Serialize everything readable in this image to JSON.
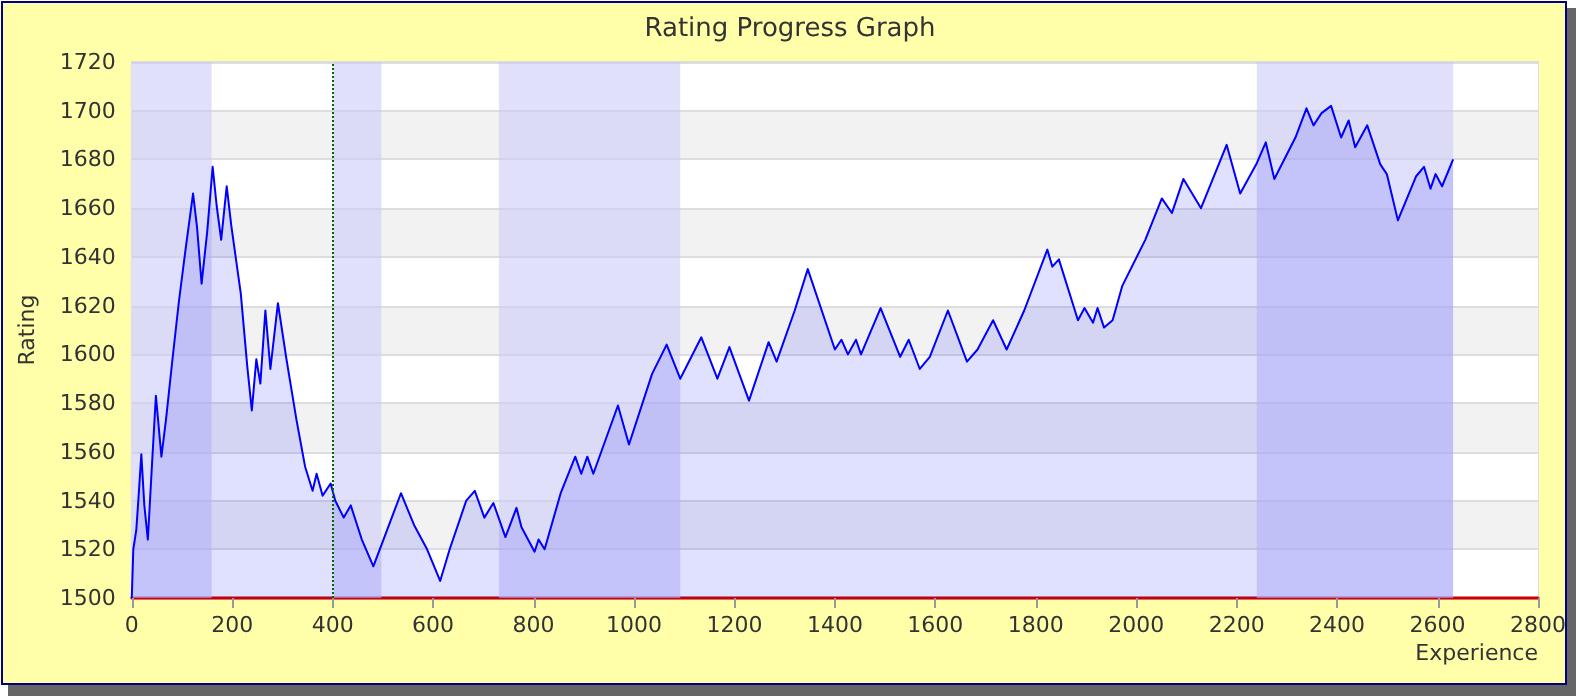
{
  "chart_data": {
    "type": "area",
    "title": "Rating Progress Graph",
    "xlabel": "Experience",
    "ylabel": "Rating",
    "x": [
      0,
      3,
      9,
      13,
      19,
      25,
      32,
      40,
      48,
      59,
      68,
      81,
      94,
      107,
      122,
      130,
      139,
      150,
      161,
      169,
      178,
      189,
      198,
      217,
      230,
      239,
      248,
      256,
      266,
      276,
      291,
      308,
      328,
      345,
      360,
      368,
      380,
      396,
      405,
      422,
      436,
      458,
      481,
      503,
      536,
      562,
      588,
      614,
      633,
      666,
      683,
      702,
      720,
      744,
      766,
      776,
      802,
      810,
      822,
      854,
      883,
      895,
      907,
      919,
      968,
      990,
      1036,
      1065,
      1092,
      1134,
      1166,
      1190,
      1229,
      1268,
      1284,
      1320,
      1346,
      1400,
      1413,
      1426,
      1442,
      1452,
      1491,
      1530,
      1547,
      1569,
      1589,
      1625,
      1663,
      1684,
      1715,
      1742,
      1777,
      1823,
      1833,
      1846,
      1884,
      1897,
      1914,
      1923,
      1936,
      1953,
      1972,
      2018,
      2051,
      2071,
      2094,
      2129,
      2180,
      2207,
      2239,
      2258,
      2275,
      2317,
      2339,
      2353,
      2369,
      2388,
      2408,
      2423,
      2436,
      2460,
      2486,
      2499,
      2521,
      2557,
      2573,
      2586,
      2596,
      2609,
      2631
    ],
    "values": [
      1500,
      1520,
      1528,
      1540,
      1559,
      1538,
      1524,
      1554,
      1583,
      1558,
      1573,
      1598,
      1622,
      1643,
      1666,
      1652,
      1629,
      1650,
      1677,
      1661,
      1647,
      1669,
      1653,
      1625,
      1595,
      1577,
      1598,
      1588,
      1618,
      1594,
      1621,
      1598,
      1573,
      1554,
      1544,
      1551,
      1542,
      1547,
      1540,
      1533,
      1538,
      1524,
      1513,
      1525,
      1543,
      1530,
      1520,
      1507,
      1520,
      1540,
      1544,
      1533,
      1539,
      1525,
      1537,
      1529,
      1519,
      1524,
      1520,
      1543,
      1558,
      1551,
      1558,
      1551,
      1579,
      1563,
      1592,
      1604,
      1590,
      1607,
      1590,
      1603,
      1581,
      1605,
      1597,
      1618,
      1635,
      1602,
      1606,
      1600,
      1606,
      1600,
      1619,
      1599,
      1606,
      1594,
      1599,
      1618,
      1597,
      1602,
      1614,
      1602,
      1618,
      1643,
      1636,
      1639,
      1614,
      1619,
      1613,
      1619,
      1611,
      1614,
      1628,
      1647,
      1664,
      1658,
      1672,
      1660,
      1686,
      1666,
      1678,
      1687,
      1672,
      1689,
      1701,
      1694,
      1699,
      1702,
      1689,
      1696,
      1685,
      1694,
      1678,
      1674,
      1655,
      1673,
      1677,
      1668,
      1674,
      1669,
      1680
    ],
    "color": "#0000ff",
    "xlim": [
      0,
      2800
    ],
    "xticks": [
      0,
      200,
      400,
      600,
      800,
      1000,
      1200,
      1400,
      1600,
      1800,
      2000,
      2200,
      2400,
      2600,
      2800
    ],
    "ylim": [
      1500,
      1720
    ],
    "yticks": [
      1500,
      1520,
      1540,
      1560,
      1580,
      1600,
      1620,
      1640,
      1660,
      1680,
      1700,
      1720
    ],
    "grid": "y",
    "marker": "none",
    "line_style": "solid",
    "bands": [
      {
        "axis": "x",
        "from": 0,
        "to": 159,
        "color": "#ccccf8"
      },
      {
        "axis": "x",
        "from": 402,
        "to": 497,
        "color": "#ccccf8"
      },
      {
        "axis": "x",
        "from": 731,
        "to": 1092,
        "color": "#ccccf8"
      },
      {
        "axis": "x",
        "from": 2240,
        "to": 2631,
        "color": "#ccccf8"
      }
    ],
    "ref_lines": [
      {
        "axis": "x",
        "value": 400,
        "color": "#006600",
        "line_style": "dotted"
      }
    ]
  }
}
